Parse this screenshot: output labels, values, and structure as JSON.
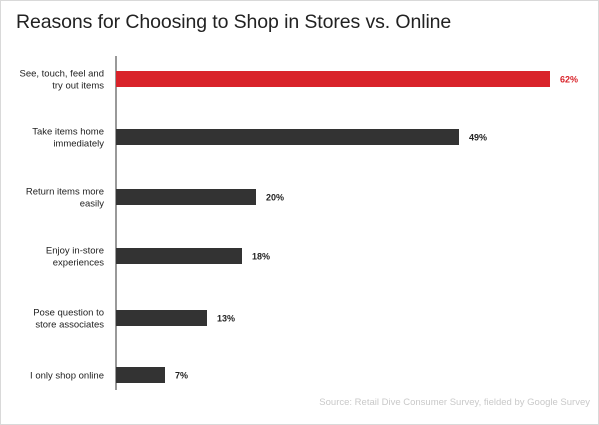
{
  "chart_data": {
    "type": "bar",
    "orientation": "horizontal",
    "title": "Reasons for Choosing to Shop in Stores vs. Online",
    "categories": [
      [
        "See, touch, feel and",
        "try out items"
      ],
      [
        "Take items home",
        "immediately"
      ],
      [
        "Return items more",
        "easily"
      ],
      [
        "Enjoy in-store",
        "experiences"
      ],
      [
        "Pose question to",
        "store associates"
      ],
      [
        "I only shop online"
      ]
    ],
    "values": [
      62,
      49,
      20,
      18,
      13,
      7
    ],
    "value_labels": [
      "62%",
      "49%",
      "20%",
      "18%",
      "13%",
      "7%"
    ],
    "xlim": [
      0,
      62
    ],
    "grid": false,
    "colors": {
      "highlight": "#d9232a",
      "bar": "#333333",
      "axis": "#333333"
    },
    "highlight_index": 0,
    "source": "Source: Retail Dive Consumer Survey, fielded by Google Survey"
  }
}
